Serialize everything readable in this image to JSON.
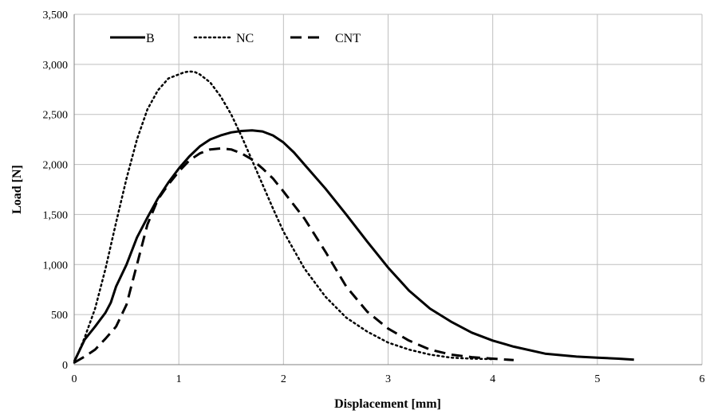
{
  "chart_data": {
    "type": "line",
    "xlabel": "Displacement [mm]",
    "ylabel": "Load [N]",
    "xlim": [
      0,
      6
    ],
    "ylim": [
      0,
      3500
    ],
    "xticks": [
      0,
      1,
      2,
      3,
      4,
      5,
      6
    ],
    "yticks": [
      0,
      500,
      1000,
      1500,
      2000,
      2500,
      3000,
      3500
    ],
    "xtick_labels": [
      "0",
      "1",
      "2",
      "3",
      "4",
      "5",
      "6"
    ],
    "ytick_labels": [
      "0",
      "500",
      "1,000",
      "1,500",
      "2,000",
      "2,500",
      "3,000",
      "3,500"
    ],
    "grid": true,
    "legend_position": "top-left",
    "series": [
      {
        "name": "B",
        "style": "solid",
        "color": "#000000",
        "x": [
          0,
          0.1,
          0.2,
          0.3,
          0.35,
          0.4,
          0.5,
          0.6,
          0.7,
          0.8,
          0.9,
          1.0,
          1.1,
          1.2,
          1.3,
          1.4,
          1.5,
          1.6,
          1.7,
          1.8,
          1.9,
          2.0,
          2.1,
          2.2,
          2.4,
          2.6,
          2.8,
          3.0,
          3.2,
          3.4,
          3.6,
          3.8,
          4.0,
          4.2,
          4.5,
          4.8,
          5.0,
          5.2,
          5.35
        ],
        "y": [
          30,
          250,
          380,
          520,
          620,
          780,
          1000,
          1270,
          1470,
          1660,
          1820,
          1960,
          2080,
          2180,
          2250,
          2290,
          2320,
          2335,
          2340,
          2330,
          2290,
          2220,
          2120,
          2000,
          1760,
          1500,
          1230,
          970,
          740,
          560,
          430,
          320,
          240,
          180,
          110,
          80,
          70,
          60,
          50
        ]
      },
      {
        "name": "NC",
        "style": "dotted",
        "color": "#000000",
        "x": [
          0,
          0.1,
          0.2,
          0.3,
          0.4,
          0.5,
          0.6,
          0.7,
          0.8,
          0.9,
          1.0,
          1.05,
          1.1,
          1.15,
          1.2,
          1.3,
          1.4,
          1.5,
          1.6,
          1.7,
          1.8,
          1.9,
          2.0,
          2.2,
          2.4,
          2.6,
          2.8,
          3.0,
          3.2,
          3.4,
          3.6,
          3.8,
          4.0
        ],
        "y": [
          20,
          270,
          560,
          960,
          1420,
          1860,
          2250,
          2550,
          2740,
          2860,
          2900,
          2920,
          2930,
          2925,
          2900,
          2820,
          2680,
          2500,
          2280,
          2040,
          1800,
          1560,
          1330,
          960,
          680,
          470,
          330,
          220,
          150,
          100,
          70,
          60,
          55
        ]
      },
      {
        "name": "CNT",
        "style": "dashed",
        "color": "#000000",
        "x": [
          0,
          0.1,
          0.2,
          0.3,
          0.4,
          0.5,
          0.6,
          0.7,
          0.8,
          0.9,
          1.0,
          1.1,
          1.2,
          1.3,
          1.4,
          1.5,
          1.6,
          1.7,
          1.8,
          1.9,
          2.0,
          2.2,
          2.4,
          2.6,
          2.8,
          3.0,
          3.2,
          3.4,
          3.6,
          3.8,
          4.0,
          4.2
        ],
        "y": [
          20,
          80,
          150,
          260,
          380,
          600,
          1000,
          1400,
          1650,
          1800,
          1930,
          2040,
          2110,
          2150,
          2160,
          2150,
          2110,
          2050,
          1960,
          1860,
          1730,
          1460,
          1130,
          780,
          530,
          360,
          240,
          150,
          100,
          75,
          60,
          45
        ]
      }
    ]
  }
}
